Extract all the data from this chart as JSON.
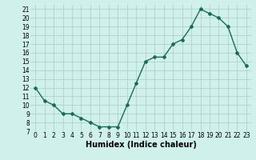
{
  "x": [
    0,
    1,
    2,
    3,
    4,
    5,
    6,
    7,
    8,
    9,
    10,
    11,
    12,
    13,
    14,
    15,
    16,
    17,
    18,
    19,
    20,
    21,
    22,
    23
  ],
  "y": [
    12,
    10.5,
    10,
    9,
    9,
    8.5,
    8,
    7.5,
    7.5,
    7.5,
    10,
    12.5,
    15,
    15.5,
    15.5,
    17,
    17.5,
    19,
    21,
    20.5,
    20,
    19,
    16,
    14.5
  ],
  "xlabel": "Humidex (Indice chaleur)",
  "ylim": [
    7,
    21.5
  ],
  "xlim": [
    -0.5,
    23.5
  ],
  "yticks": [
    7,
    8,
    9,
    10,
    11,
    12,
    13,
    14,
    15,
    16,
    17,
    18,
    19,
    20,
    21
  ],
  "xticks": [
    0,
    1,
    2,
    3,
    4,
    5,
    6,
    7,
    8,
    9,
    10,
    11,
    12,
    13,
    14,
    15,
    16,
    17,
    18,
    19,
    20,
    21,
    22,
    23
  ],
  "xtick_labels": [
    "0",
    "1",
    "2",
    "3",
    "4",
    "5",
    "6",
    "7",
    "8",
    "9",
    "10",
    "11",
    "12",
    "13",
    "14",
    "15",
    "16",
    "17",
    "18",
    "19",
    "20",
    "21",
    "22",
    "23"
  ],
  "line_color": "#1a6b5a",
  "marker": "D",
  "markersize": 2,
  "linewidth": 1.0,
  "bg_color": "#cff0eb",
  "grid_color": "#aaccc7",
  "xlabel_fontsize": 7,
  "tick_fontsize": 5.5
}
